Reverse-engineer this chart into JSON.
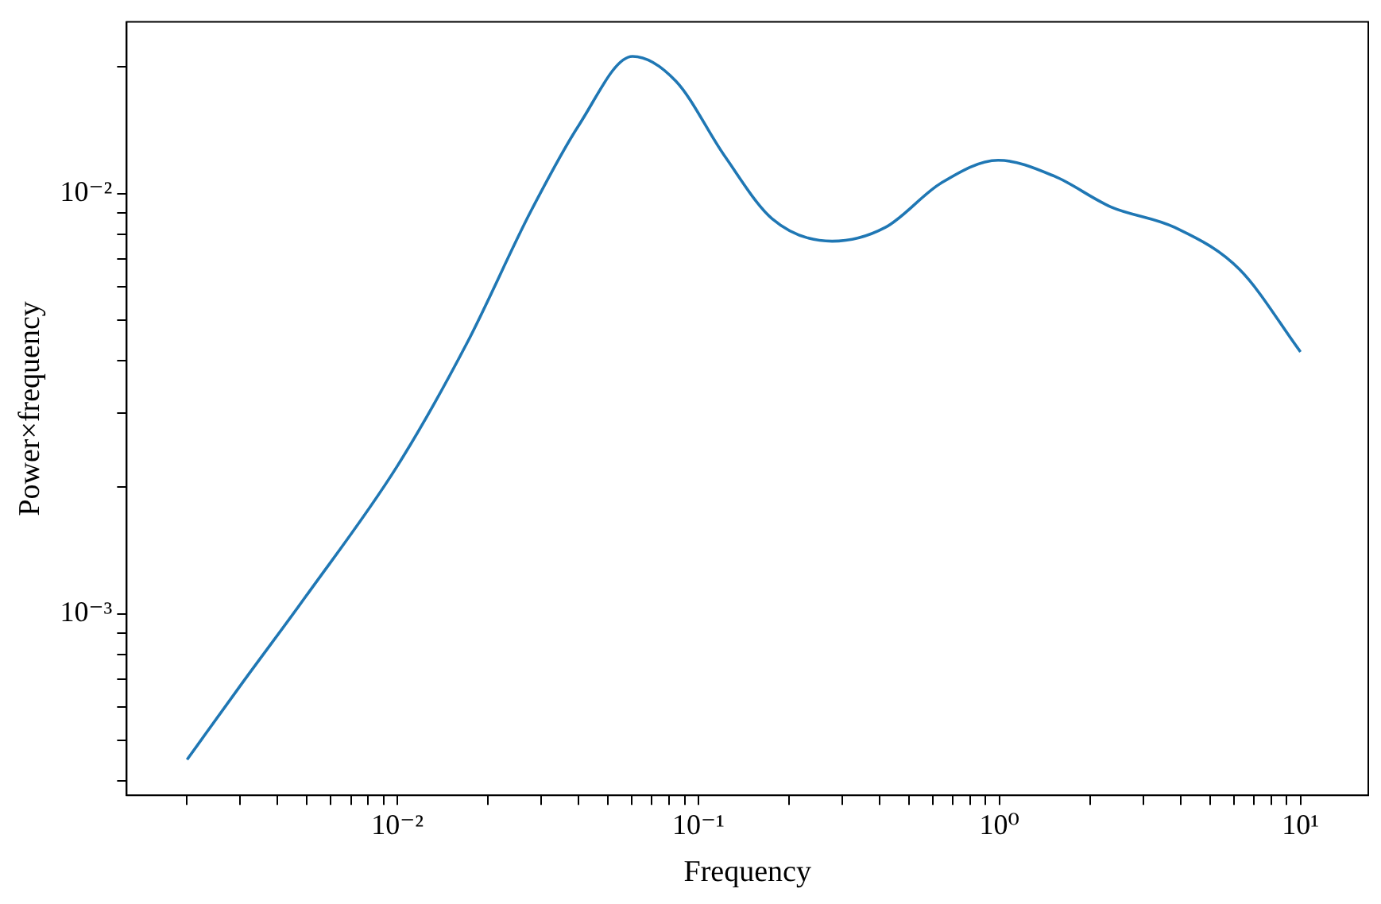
{
  "chart_data": {
    "type": "line",
    "xlabel": "Frequency",
    "ylabel": "Power×frequency",
    "log": "xy",
    "marker": "none",
    "line_style": "solid",
    "grid": false,
    "x": [
      0.002,
      0.00303,
      0.00496,
      0.01,
      0.017,
      0.0278,
      0.0402,
      0.0604,
      0.0842,
      0.122,
      0.176,
      0.278,
      0.417,
      0.641,
      0.99,
      1.52,
      2.34,
      3.83,
      6.27,
      10
    ],
    "series": [
      {
        "color": "#1f77b4",
        "values": [
          0.00045,
          0.00068,
          0.0011,
          0.00225,
          0.0044,
          0.0091,
          0.0146,
          0.0212,
          0.0185,
          0.0123,
          0.0087,
          0.0077,
          0.0083,
          0.0106,
          0.012,
          0.011,
          0.0093,
          0.0083,
          0.0066,
          0.0042
        ]
      }
    ],
    "xlim": [
      0.00126,
      16.8
    ],
    "ylim": [
      0.00037,
      0.0256
    ],
    "xticks": [
      {
        "value": 0.002,
        "label": null
      },
      {
        "value": 0.003,
        "label": null
      },
      {
        "value": 0.004,
        "label": null
      },
      {
        "value": 0.005,
        "label": null
      },
      {
        "value": 0.006,
        "label": null
      },
      {
        "value": 0.007,
        "label": null
      },
      {
        "value": 0.008,
        "label": null
      },
      {
        "value": 0.009,
        "label": null
      },
      {
        "value": 0.01,
        "label": "10⁻²"
      },
      {
        "value": 0.02,
        "label": null
      },
      {
        "value": 0.03,
        "label": null
      },
      {
        "value": 0.04,
        "label": null
      },
      {
        "value": 0.05,
        "label": null
      },
      {
        "value": 0.06,
        "label": null
      },
      {
        "value": 0.07,
        "label": null
      },
      {
        "value": 0.08,
        "label": null
      },
      {
        "value": 0.09,
        "label": null
      },
      {
        "value": 0.1,
        "label": "10⁻¹"
      },
      {
        "value": 0.2,
        "label": null
      },
      {
        "value": 0.3,
        "label": null
      },
      {
        "value": 0.4,
        "label": null
      },
      {
        "value": 0.5,
        "label": null
      },
      {
        "value": 0.6,
        "label": null
      },
      {
        "value": 0.7,
        "label": null
      },
      {
        "value": 0.8,
        "label": null
      },
      {
        "value": 0.9,
        "label": null
      },
      {
        "value": 1,
        "label": "10⁰"
      },
      {
        "value": 2,
        "label": null
      },
      {
        "value": 3,
        "label": null
      },
      {
        "value": 4,
        "label": null
      },
      {
        "value": 5,
        "label": null
      },
      {
        "value": 6,
        "label": null
      },
      {
        "value": 7,
        "label": null
      },
      {
        "value": 8,
        "label": null
      },
      {
        "value": 9,
        "label": null
      },
      {
        "value": 10,
        "label": "10¹"
      }
    ],
    "yticks": [
      {
        "value": 0.0004,
        "label": null
      },
      {
        "value": 0.0005,
        "label": null
      },
      {
        "value": 0.0006,
        "label": null
      },
      {
        "value": 0.0007,
        "label": null
      },
      {
        "value": 0.0008,
        "label": null
      },
      {
        "value": 0.0009,
        "label": null
      },
      {
        "value": 0.001,
        "label": "10⁻³"
      },
      {
        "value": 0.002,
        "label": null
      },
      {
        "value": 0.003,
        "label": null
      },
      {
        "value": 0.004,
        "label": null
      },
      {
        "value": 0.005,
        "label": null
      },
      {
        "value": 0.006,
        "label": null
      },
      {
        "value": 0.007,
        "label": null
      },
      {
        "value": 0.008,
        "label": null
      },
      {
        "value": 0.009,
        "label": null
      },
      {
        "value": 0.01,
        "label": "10⁻²"
      },
      {
        "value": 0.02,
        "label": null
      }
    ]
  }
}
